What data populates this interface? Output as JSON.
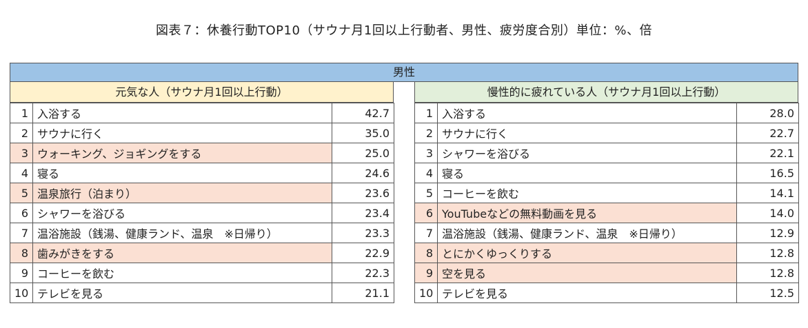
{
  "title": "図表７：休養行動TOP10（サウナ月1回以上行動者、男性、疲労度合別）単位：%、倍",
  "colors": {
    "gender_header_bg": "#9dc3e6",
    "left_header_bg": "#fff2cc",
    "right_header_bg": "#e2efda",
    "highlight_row_bg": "#fbe0d3"
  },
  "chart_data": {
    "type": "table",
    "title": "図表７：休養行動TOP10（サウナ月1回以上行動者、男性、疲労度合別）単位：%、倍",
    "group": "男性",
    "tables": [
      {
        "name": "元気な人（サウナ月1回以上行動）",
        "rows": [
          {
            "rank": "1",
            "label": "入浴する",
            "value": "42.7",
            "highlight": false
          },
          {
            "rank": "2",
            "label": "サウナに行く",
            "value": "35.0",
            "highlight": false
          },
          {
            "rank": "3",
            "label": "ウォーキング、ジョギングをする",
            "value": "25.0",
            "highlight": true
          },
          {
            "rank": "4",
            "label": "寝る",
            "value": "24.6",
            "highlight": false
          },
          {
            "rank": "5",
            "label": "温泉旅行（泊まり）",
            "value": "23.6",
            "highlight": true
          },
          {
            "rank": "6",
            "label": "シャワーを浴びる",
            "value": "23.4",
            "highlight": false
          },
          {
            "rank": "7",
            "label": "温浴施設（銭湯、健康ランド、温泉　※日帰り）",
            "value": "23.3",
            "highlight": false
          },
          {
            "rank": "8",
            "label": "歯みがきをする",
            "value": "22.9",
            "highlight": true
          },
          {
            "rank": "9",
            "label": "コーヒーを飲む",
            "value": "22.3",
            "highlight": false
          },
          {
            "rank": "10",
            "label": "テレビを見る",
            "value": "21.1",
            "highlight": false
          }
        ]
      },
      {
        "name": "慢性的に疲れている人（サウナ月1回以上行動）",
        "rows": [
          {
            "rank": "1",
            "label": "入浴する",
            "value": "28.0",
            "highlight": false
          },
          {
            "rank": "2",
            "label": "サウナに行く",
            "value": "22.7",
            "highlight": false
          },
          {
            "rank": "3",
            "label": "シャワーを浴びる",
            "value": "22.1",
            "highlight": false
          },
          {
            "rank": "4",
            "label": "寝る",
            "value": "16.5",
            "highlight": false
          },
          {
            "rank": "5",
            "label": "コーヒーを飲む",
            "value": "14.1",
            "highlight": false
          },
          {
            "rank": "6",
            "label": "YouTubeなどの無料動画を見る",
            "value": "14.0",
            "highlight": true
          },
          {
            "rank": "7",
            "label": "温浴施設（銭湯、健康ランド、温泉　※日帰り）",
            "value": "12.9",
            "highlight": false
          },
          {
            "rank": "8",
            "label": "とにかくゆっくりする",
            "value": "12.8",
            "highlight": true
          },
          {
            "rank": "9",
            "label": "空を見る",
            "value": "12.8",
            "highlight": true
          },
          {
            "rank": "10",
            "label": "テレビを見る",
            "value": "12.5",
            "highlight": false
          }
        ]
      }
    ]
  }
}
